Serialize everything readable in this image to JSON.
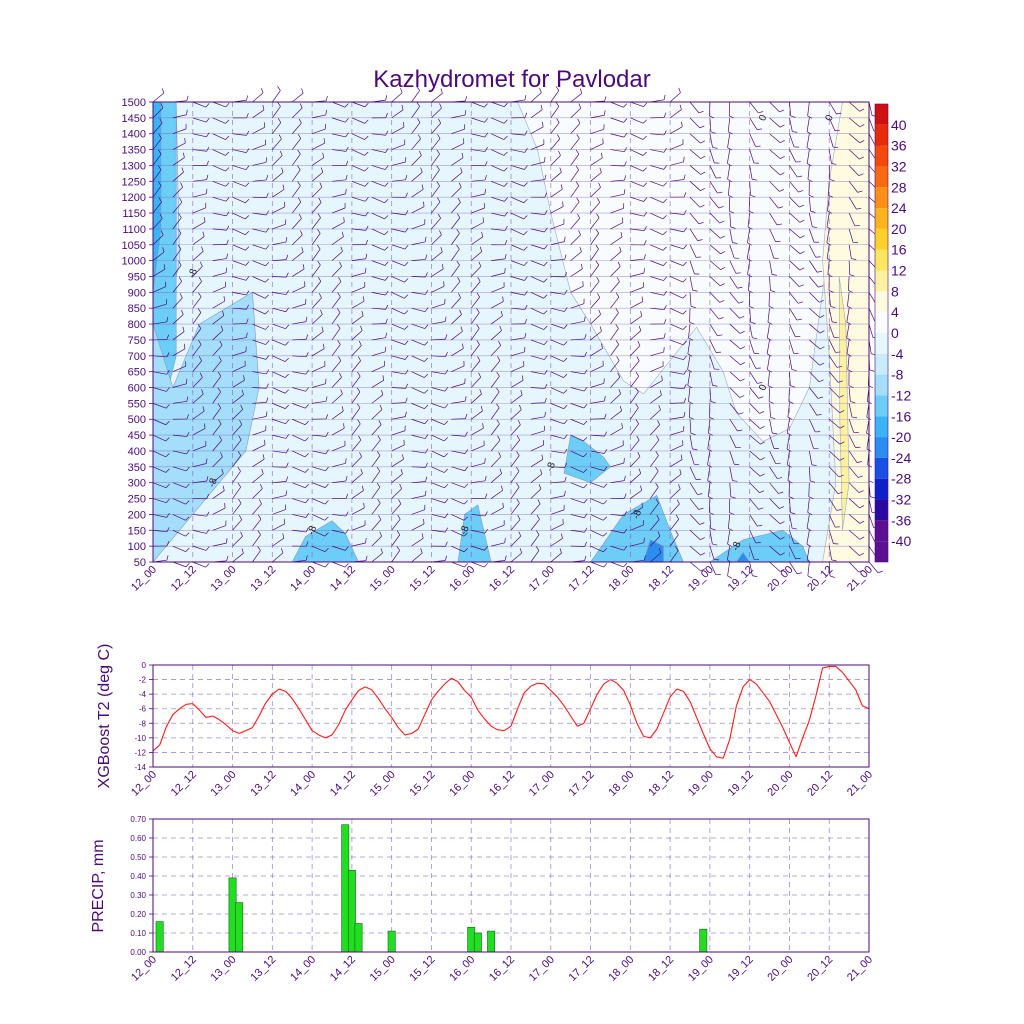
{
  "title": "Kazhydromet for Pavlodar",
  "time_labels": [
    "12_00",
    "12_12",
    "13_00",
    "13_12",
    "14_00",
    "14_12",
    "15_00",
    "15_12",
    "16_00",
    "16_12",
    "17_00",
    "17_12",
    "18_00",
    "18_12",
    "19_00",
    "19_12",
    "20_00",
    "20_12",
    "21_00"
  ],
  "colors": {
    "axis": "#4b0a7a",
    "grid": "#7a5bb8",
    "t2_line": "#ff1a1a",
    "precip_bar": "#22dd22",
    "barb": "#4b0a7a"
  },
  "chart_data": [
    {
      "type": "heatmap",
      "name": "cross-section",
      "title": "Kazhydromet for Pavlodar",
      "y_ticks": [
        1500,
        1450,
        1400,
        1350,
        1300,
        1250,
        1200,
        1150,
        1100,
        1050,
        1000,
        950,
        900,
        850,
        800,
        750,
        700,
        650,
        600,
        550,
        500,
        450,
        400,
        350,
        300,
        250,
        200,
        150,
        100,
        50
      ],
      "ylim": [
        50,
        1500
      ],
      "colorbar_levels": [
        "40",
        "36",
        "32",
        "28",
        "24",
        "20",
        "16",
        "12",
        "8",
        "4",
        "0",
        "-4",
        "-8",
        "-12",
        "-16",
        "-20",
        "-24",
        "-28",
        "-32",
        "-36",
        "-40"
      ],
      "colorbar_colors": [
        "#d01010",
        "#e62a0a",
        "#f24a0a",
        "#f86a10",
        "#fa9014",
        "#fcb41e",
        "#fdd02a",
        "#fde660",
        "#fdf2a0",
        "#fefbe0",
        "#f8fcff",
        "#e6f6fe",
        "#c8ecfc",
        "#a4defa",
        "#6ccdf6",
        "#3ab4f4",
        "#2a8ef0",
        "#1850e6",
        "#1020c8",
        "#2a08a0",
        "#5a1090"
      ],
      "contour_labels": [
        "-8",
        "-8",
        "-8",
        "-8",
        "-8",
        "-8",
        "-8",
        "0",
        "0",
        "0"
      ],
      "grid": true
    },
    {
      "type": "line",
      "name": "XGBoost T2",
      "ylabel": "XGBoost T2 (deg C)",
      "ylim": [
        -14,
        0
      ],
      "y_ticks": [
        "0",
        "-2",
        "-4",
        "-6",
        "-8",
        "-10",
        "-12",
        "-14"
      ],
      "x": [
        0,
        1,
        2,
        3,
        4,
        5,
        6,
        7,
        8,
        9,
        10,
        11,
        12,
        13,
        14,
        15,
        16,
        17,
        18,
        19,
        20,
        21,
        22,
        23,
        24,
        25,
        26,
        27,
        28,
        29,
        30,
        31,
        32,
        33,
        34,
        35,
        36,
        37,
        38,
        39,
        40,
        41,
        42,
        43,
        44,
        45,
        46,
        47,
        48,
        49,
        50,
        51,
        52,
        53,
        54,
        55,
        56,
        57,
        58,
        59,
        60,
        61,
        62,
        63,
        64,
        65,
        66,
        67,
        68,
        69,
        70,
        71,
        72,
        73,
        74,
        75,
        76,
        77,
        78,
        79,
        80,
        81,
        82,
        83,
        84,
        85,
        86,
        87,
        88,
        89,
        90,
        91,
        92,
        93,
        94,
        95,
        96,
        97,
        98,
        99,
        100,
        101,
        102,
        103,
        104,
        105,
        106,
        107,
        108
      ],
      "values": [
        -11.8,
        -11.0,
        -8.5,
        -6.8,
        -6.0,
        -5.4,
        -5.3,
        -6.2,
        -7.2,
        -7.0,
        -7.5,
        -8.2,
        -9.0,
        -9.4,
        -9.0,
        -8.6,
        -7.0,
        -5.2,
        -4.0,
        -3.3,
        -3.6,
        -4.6,
        -6.0,
        -7.5,
        -9.0,
        -9.6,
        -10.0,
        -9.6,
        -8.2,
        -6.2,
        -4.8,
        -3.5,
        -3.0,
        -3.4,
        -4.6,
        -6.0,
        -7.2,
        -8.6,
        -9.6,
        -9.4,
        -8.8,
        -6.8,
        -4.8,
        -3.6,
        -2.6,
        -1.8,
        -2.3,
        -3.5,
        -4.4,
        -6.2,
        -7.4,
        -8.4,
        -8.9,
        -9.0,
        -8.4,
        -6.0,
        -3.8,
        -2.9,
        -2.5,
        -2.6,
        -3.5,
        -4.4,
        -5.6,
        -7.0,
        -8.4,
        -8.0,
        -6.0,
        -4.0,
        -2.6,
        -2.0,
        -2.5,
        -3.5,
        -5.5,
        -8.0,
        -9.8,
        -10.0,
        -8.8,
        -6.6,
        -4.4,
        -3.3,
        -3.6,
        -5.0,
        -7.2,
        -9.4,
        -11.5,
        -12.6,
        -12.8,
        -10.2,
        -5.6,
        -3.0,
        -2.0,
        -2.6,
        -3.8,
        -5.0,
        -6.8,
        -8.6,
        -10.6,
        -12.6,
        -10.0,
        -7.6,
        -4.2,
        -0.4,
        -0.2,
        -0.2,
        -1.0,
        -2.2,
        -3.4,
        -5.6,
        -6.0
      ],
      "grid": true
    },
    {
      "type": "bar",
      "name": "PRECIP",
      "ylabel": "PRECIP, mm",
      "ylim": [
        0,
        0.7
      ],
      "y_ticks": [
        "0.70",
        "0.60",
        "0.50",
        "0.40",
        "0.30",
        "0.20",
        "0.10",
        "0.00"
      ],
      "x": [
        1,
        12,
        13,
        29,
        30,
        31,
        36,
        48,
        49,
        51,
        83
      ],
      "values": [
        0.16,
        0.39,
        0.26,
        0.67,
        0.43,
        0.15,
        0.11,
        0.13,
        0.1,
        0.11,
        0.12
      ],
      "grid": true
    }
  ]
}
